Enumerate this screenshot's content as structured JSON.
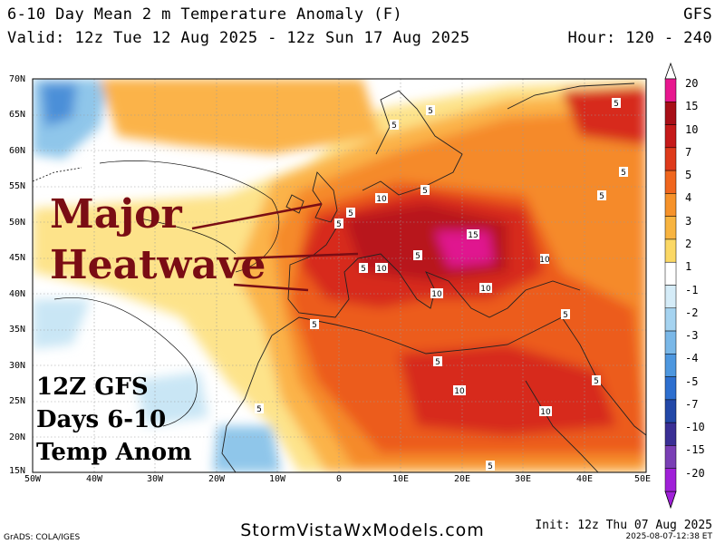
{
  "header": {
    "title": "6-10 Day Mean 2 m Temperature Anomaly (F)",
    "model": "GFS",
    "valid": "Valid: 12z Tue 12 Aug 2025 - 12z Sun 17 Aug 2025",
    "hour": "Hour: 120 - 240"
  },
  "map": {
    "lat_labels": [
      "70N",
      "65N",
      "60N",
      "55N",
      "50N",
      "45N",
      "40N",
      "35N",
      "30N",
      "25N",
      "20N",
      "15N"
    ],
    "lon_labels": [
      "50W",
      "40W",
      "30W",
      "20W",
      "10W",
      "0",
      "10E",
      "20E",
      "30E",
      "40E",
      "50E"
    ],
    "contour_labels": [
      "5",
      "5",
      "5",
      "10",
      "5",
      "5",
      "5",
      "10",
      "15",
      "5",
      "10",
      "5",
      "10",
      "10",
      "5",
      "5",
      "10",
      "10",
      "5",
      "5",
      "5",
      "5",
      "5",
      "5"
    ],
    "colors": {
      "ocean_neutral": "#ffffff",
      "warm1": "#fde38a",
      "warm2": "#fbb349",
      "warm3": "#f58a2a",
      "warm4": "#ec5b1f",
      "warm5": "#d72a1c",
      "warm6": "#b8131b",
      "hot": "#e0138f",
      "cool1": "#c9e6f5",
      "cool2": "#8fc6ea",
      "cool3": "#4b8fd8"
    }
  },
  "colorbar": {
    "labels": [
      "20",
      "15",
      "10",
      "7",
      "5",
      "4",
      "3",
      "2",
      "1",
      "-1",
      "-2",
      "-3",
      "-4",
      "-5",
      "-7",
      "-10",
      "-15",
      "-20"
    ],
    "colors": [
      "#e8178f",
      "#a80f18",
      "#c51a1a",
      "#de3a1b",
      "#f0661e",
      "#f6922a",
      "#f8b440",
      "#fbd865",
      "#ffffff",
      "#d5ecf8",
      "#a5d3f0",
      "#7ab8e8",
      "#4d97df",
      "#2d6fcf",
      "#2348a8",
      "#3a2f95",
      "#7a3fb5",
      "#a020d8"
    ]
  },
  "overlay": {
    "heatwave_line1": "Major",
    "heatwave_line2": "Heatwave",
    "gfs_line1": "12Z GFS",
    "gfs_line2": "Days 6-10",
    "gfs_line3": "Temp Anom"
  },
  "footer": {
    "grads": "GrADS: COLA/IGES",
    "site": "StormVistaWxModels.com",
    "init": "Init: 12z Thu 07 Aug 2025",
    "stamp": "2025-08-07-12:38 ET"
  }
}
